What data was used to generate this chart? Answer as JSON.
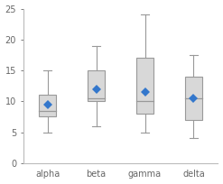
{
  "categories": [
    "alpha",
    "beta",
    "gamma",
    "delta"
  ],
  "boxes": [
    {
      "whisker_low": 5.0,
      "q1": 7.5,
      "median": 8.5,
      "q3": 11.0,
      "whisker_high": 15.0,
      "mean": 9.5
    },
    {
      "whisker_low": 6.0,
      "q1": 10.0,
      "median": 10.5,
      "q3": 15.0,
      "whisker_high": 19.0,
      "mean": 12.0
    },
    {
      "whisker_low": 5.0,
      "q1": 8.0,
      "median": 10.0,
      "q3": 17.0,
      "whisker_high": 24.0,
      "mean": 11.5
    },
    {
      "whisker_low": 4.0,
      "q1": 7.0,
      "median": 10.5,
      "q3": 14.0,
      "whisker_high": 17.5,
      "mean": 10.5
    }
  ],
  "ylim": [
    0,
    25
  ],
  "yticks": [
    0,
    5,
    10,
    15,
    20,
    25
  ],
  "box_color": "#d8d8d8",
  "box_edge_color": "#999999",
  "whisker_color": "#999999",
  "median_color": "#999999",
  "mean_color": "#3377cc",
  "mean_marker": "D",
  "mean_marker_size": 5,
  "background_color": "#ffffff",
  "figsize": [
    2.47,
    2.04
  ],
  "dpi": 100
}
